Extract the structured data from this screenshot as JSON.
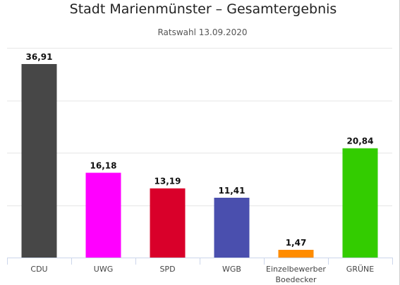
{
  "chart_data": {
    "type": "bar",
    "title": "Stadt Marienmünster – Gesamtergebnis",
    "subtitle": "Ratswahl 13.09.2020",
    "categories": [
      "CDU",
      "UWG",
      "SPD",
      "WGB",
      "Einzelbewerber Boedecker",
      "GRÜNE"
    ],
    "category_lines": [
      [
        "CDU"
      ],
      [
        "UWG"
      ],
      [
        "SPD"
      ],
      [
        "WGB"
      ],
      [
        "Einzelbewerber",
        "Boedecker"
      ],
      [
        "GRÜNE"
      ]
    ],
    "values": [
      36.91,
      16.18,
      13.19,
      11.41,
      1.47,
      20.84
    ],
    "value_labels": [
      "36,91",
      "16,18",
      "13,19",
      "11,41",
      "1,47",
      "20,84"
    ],
    "colors": [
      "#474747",
      "#ff00ff",
      "#d9002a",
      "#4a4fae",
      "#ff8c00",
      "#33cc00"
    ],
    "ylim": [
      0,
      40
    ],
    "grid": true,
    "legend": "none",
    "xlabel": "",
    "ylabel": ""
  }
}
